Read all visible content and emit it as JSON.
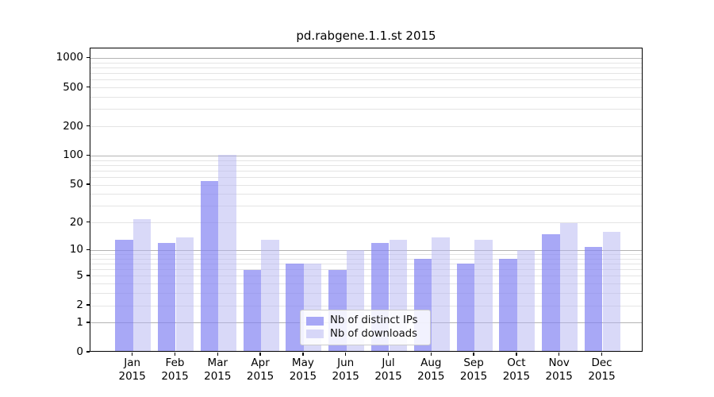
{
  "chart_data": {
    "type": "bar",
    "title": "pd.rabgene.1.1.st 2015",
    "categories": [
      "Jan",
      "Feb",
      "Mar",
      "Apr",
      "May",
      "Jun",
      "Jul",
      "Aug",
      "Sep",
      "Oct",
      "Nov",
      "Dec"
    ],
    "category_sublabel": "2015",
    "series": [
      {
        "name": "Nb of distinct IPs",
        "values": [
          13,
          12,
          55,
          6,
          7,
          6,
          12,
          8,
          7,
          8,
          15,
          11
        ],
        "fill": "rgba(131,131,242,0.7)",
        "solid_color": "#a8a8f6"
      },
      {
        "name": "Nb of downloads",
        "values": [
          22,
          14,
          102,
          13,
          7,
          10,
          13,
          14,
          13,
          10,
          20,
          16
        ],
        "fill": "rgba(179,179,241,0.5)",
        "solid_color": "#d9d9f8"
      }
    ],
    "xlabel": "",
    "ylabel": "",
    "yscale": "log1p",
    "ylim": [
      0,
      1270
    ],
    "y_ticks": [
      0,
      1,
      2,
      5,
      10,
      20,
      50,
      100,
      200,
      500,
      1000
    ],
    "y_major_gridlines": [
      1,
      10,
      100,
      1000
    ],
    "grid": "horizontal, minor lines at 2-9, 20-90, 200-900",
    "legend_position": "inside lower-center"
  },
  "colors": {
    "background": "#ffffff",
    "axis": "#000000",
    "major_grid": "#b3b3b3",
    "minor_grid": "#e4e4e4",
    "text": "#111111",
    "legend_border": "#cccccc"
  }
}
